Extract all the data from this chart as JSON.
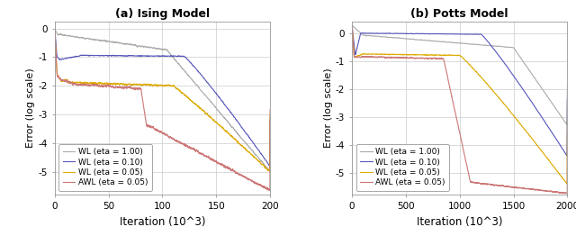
{
  "title_a": "(a) Ising Model",
  "title_b": "(b) Potts Model",
  "xlabel": "Iteration (10^3)",
  "ylabel": "Error (log scale)",
  "legend_labels": [
    "WL (eta = 1.00)",
    "WL (eta = 0.10)",
    "WL (eta = 0.05)",
    "AWL (eta = 0.05)"
  ],
  "colors": [
    "#aaaaaa",
    "#5555bb",
    "#ddaa00",
    "#cc7777"
  ],
  "ylim_a": [
    -5.8,
    0.25
  ],
  "ylim_b": [
    -5.8,
    0.45
  ],
  "xlim_a": [
    0,
    200
  ],
  "xlim_b": [
    0,
    2000
  ],
  "yticks": [
    0,
    -1,
    -2,
    -3,
    -4,
    -5
  ],
  "xticks_a": [
    0,
    50,
    100,
    150,
    200
  ],
  "xticks_b": [
    0,
    500,
    1000,
    1500,
    2000
  ],
  "background_color": "#ffffff",
  "grid_color": "#cccccc",
  "seed": 123
}
